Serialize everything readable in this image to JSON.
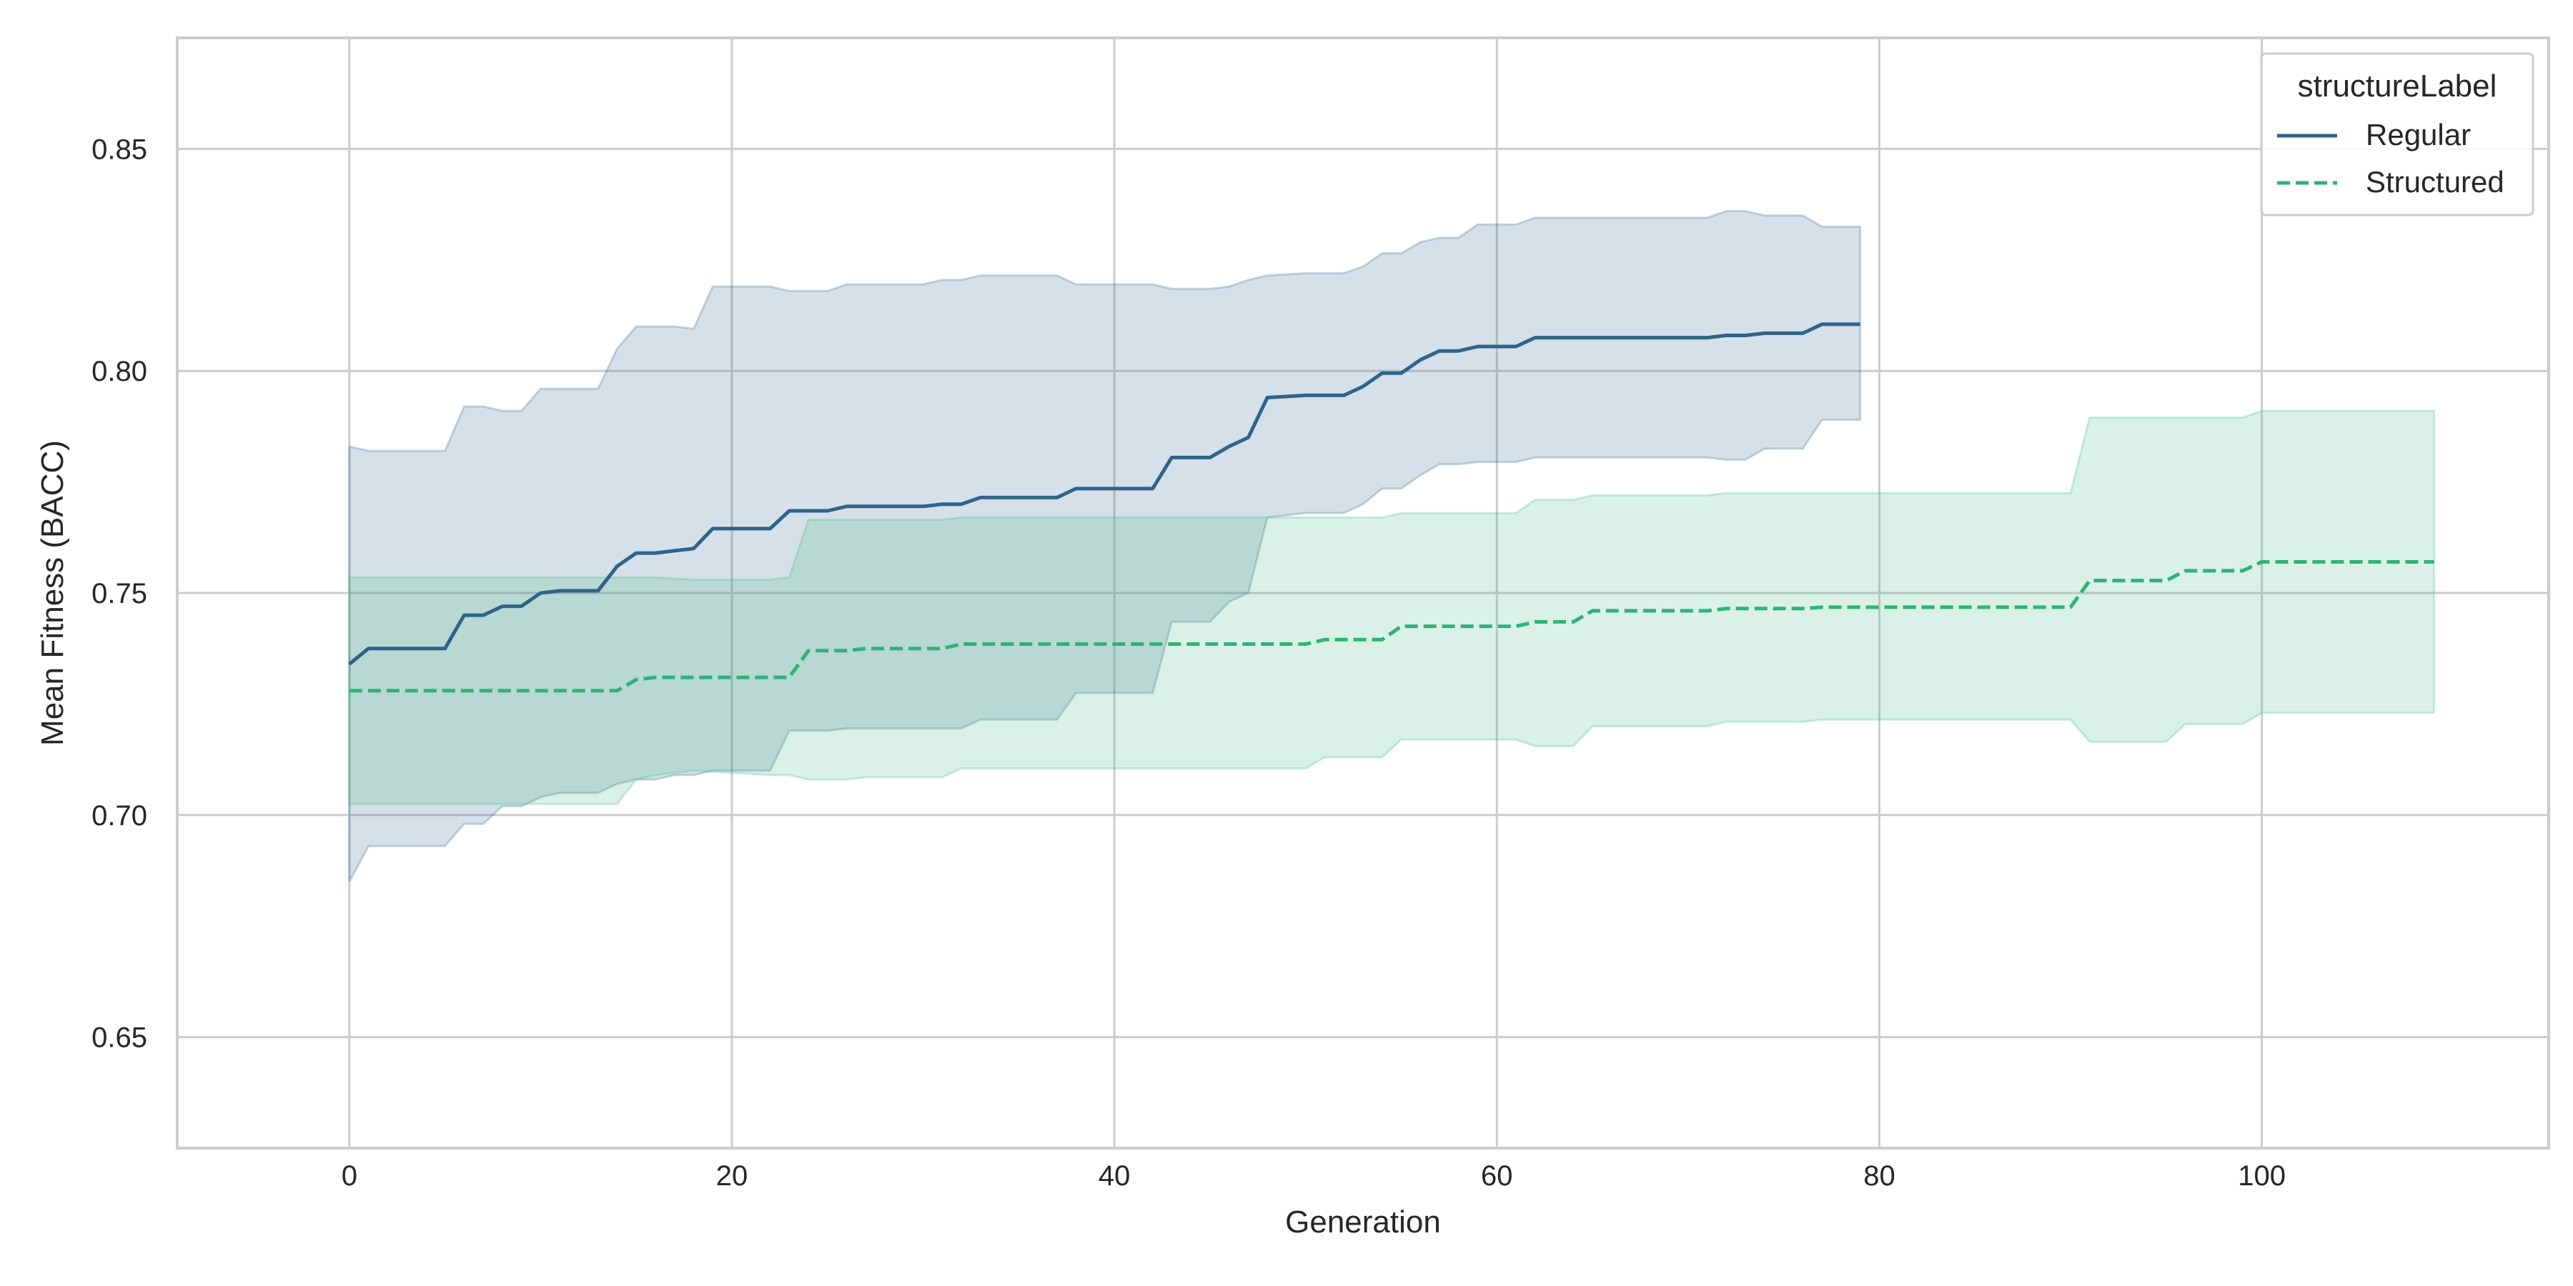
{
  "chart_data": {
    "type": "line",
    "title": "",
    "xlabel": "Generation",
    "ylabel": "Mean Fitness (BACC)",
    "xlim": [
      -9,
      115
    ],
    "ylim": [
      0.625,
      0.875
    ],
    "xticks": [
      0,
      20,
      40,
      60,
      80,
      100
    ],
    "yticks": [
      0.65,
      0.7,
      0.75,
      0.8,
      0.85
    ],
    "xtick_labels": [
      "0",
      "20",
      "40",
      "60",
      "80",
      "100"
    ],
    "ytick_labels": [
      "0.65",
      "0.70",
      "0.75",
      "0.80",
      "0.85"
    ],
    "grid": true,
    "legend": {
      "title": "structureLabel",
      "position": "top-right"
    },
    "series": [
      {
        "name": "Regular",
        "color": "#2f638a",
        "line_style": "solid",
        "band_color": "#2f638a",
        "points": [
          [
            0,
            0.734,
            0.685,
            0.783
          ],
          [
            1,
            0.7375,
            0.693,
            0.782
          ],
          [
            5,
            0.7375,
            0.693,
            0.782
          ],
          [
            6,
            0.745,
            0.698,
            0.792
          ],
          [
            7,
            0.745,
            0.698,
            0.792
          ],
          [
            8,
            0.747,
            0.702,
            0.791
          ],
          [
            9,
            0.747,
            0.702,
            0.791
          ],
          [
            10,
            0.75,
            0.704,
            0.796
          ],
          [
            11,
            0.7505,
            0.705,
            0.796
          ],
          [
            13,
            0.7505,
            0.705,
            0.796
          ],
          [
            14,
            0.756,
            0.707,
            0.805
          ],
          [
            15,
            0.759,
            0.708,
            0.81
          ],
          [
            16,
            0.759,
            0.708,
            0.81
          ],
          [
            17,
            0.7595,
            0.709,
            0.81
          ],
          [
            18,
            0.76,
            0.709,
            0.8095
          ],
          [
            19,
            0.7645,
            0.71,
            0.819
          ],
          [
            22,
            0.7645,
            0.71,
            0.819
          ],
          [
            23,
            0.7685,
            0.719,
            0.818
          ],
          [
            25,
            0.7685,
            0.719,
            0.818
          ],
          [
            26,
            0.7695,
            0.7195,
            0.8195
          ],
          [
            30,
            0.7695,
            0.7195,
            0.8195
          ],
          [
            31,
            0.77,
            0.7195,
            0.8205
          ],
          [
            32,
            0.77,
            0.7195,
            0.8205
          ],
          [
            33,
            0.7715,
            0.7215,
            0.8215
          ],
          [
            37,
            0.7715,
            0.7215,
            0.8215
          ],
          [
            38,
            0.7735,
            0.7275,
            0.8195
          ],
          [
            42,
            0.7735,
            0.7275,
            0.8195
          ],
          [
            43,
            0.7805,
            0.7435,
            0.8185
          ],
          [
            45,
            0.7805,
            0.7435,
            0.8185
          ],
          [
            46,
            0.783,
            0.748,
            0.819
          ],
          [
            47,
            0.785,
            0.75,
            0.8205
          ],
          [
            48,
            0.794,
            0.767,
            0.8215
          ],
          [
            50,
            0.7945,
            0.768,
            0.822
          ],
          [
            52,
            0.7945,
            0.768,
            0.822
          ],
          [
            53,
            0.7965,
            0.77,
            0.8235
          ],
          [
            54,
            0.7995,
            0.7735,
            0.8265
          ],
          [
            55,
            0.7995,
            0.7735,
            0.8265
          ],
          [
            56,
            0.8025,
            0.7765,
            0.829
          ],
          [
            57,
            0.8045,
            0.779,
            0.83
          ],
          [
            58,
            0.8045,
            0.779,
            0.83
          ],
          [
            59,
            0.8055,
            0.7795,
            0.833
          ],
          [
            61,
            0.8055,
            0.7795,
            0.833
          ],
          [
            62,
            0.8075,
            0.7805,
            0.8345
          ],
          [
            71,
            0.8075,
            0.7805,
            0.8345
          ],
          [
            72,
            0.808,
            0.78,
            0.836
          ],
          [
            73,
            0.808,
            0.78,
            0.836
          ],
          [
            74,
            0.8085,
            0.7825,
            0.835
          ],
          [
            76,
            0.8085,
            0.7825,
            0.835
          ],
          [
            77,
            0.8105,
            0.789,
            0.8325
          ],
          [
            79,
            0.8105,
            0.789,
            0.8325
          ]
        ]
      },
      {
        "name": "Structured",
        "color": "#2fb374",
        "line_style": "dashed",
        "band_color": "#3fbb80",
        "points": [
          [
            0,
            0.728,
            0.7025,
            0.7535
          ],
          [
            14,
            0.728,
            0.7025,
            0.7535
          ],
          [
            15,
            0.7305,
            0.708,
            0.7535
          ],
          [
            16,
            0.731,
            0.709,
            0.7535
          ],
          [
            18,
            0.731,
            0.71,
            0.753
          ],
          [
            22,
            0.731,
            0.709,
            0.753
          ],
          [
            23,
            0.731,
            0.709,
            0.7535
          ],
          [
            24,
            0.737,
            0.708,
            0.7665
          ],
          [
            26,
            0.737,
            0.708,
            0.7665
          ],
          [
            27,
            0.7375,
            0.7085,
            0.7665
          ],
          [
            31,
            0.7375,
            0.7085,
            0.7665
          ],
          [
            32,
            0.7385,
            0.7105,
            0.767
          ],
          [
            50,
            0.7385,
            0.7105,
            0.767
          ],
          [
            51,
            0.7395,
            0.713,
            0.767
          ],
          [
            54,
            0.7395,
            0.713,
            0.767
          ],
          [
            55,
            0.7425,
            0.717,
            0.768
          ],
          [
            61,
            0.7425,
            0.717,
            0.768
          ],
          [
            62,
            0.7435,
            0.7155,
            0.771
          ],
          [
            64,
            0.7435,
            0.7155,
            0.771
          ],
          [
            65,
            0.746,
            0.72,
            0.772
          ],
          [
            71,
            0.746,
            0.72,
            0.772
          ],
          [
            72,
            0.7465,
            0.721,
            0.7725
          ],
          [
            76,
            0.7465,
            0.721,
            0.7725
          ],
          [
            77,
            0.7468,
            0.7215,
            0.7725
          ],
          [
            90,
            0.7468,
            0.7215,
            0.7725
          ],
          [
            91,
            0.7528,
            0.7165,
            0.7895
          ],
          [
            95,
            0.7528,
            0.7165,
            0.7895
          ],
          [
            96,
            0.755,
            0.7205,
            0.7895
          ],
          [
            99,
            0.755,
            0.7205,
            0.7895
          ],
          [
            100,
            0.757,
            0.723,
            0.791
          ],
          [
            109,
            0.757,
            0.723,
            0.791
          ]
        ]
      }
    ]
  }
}
